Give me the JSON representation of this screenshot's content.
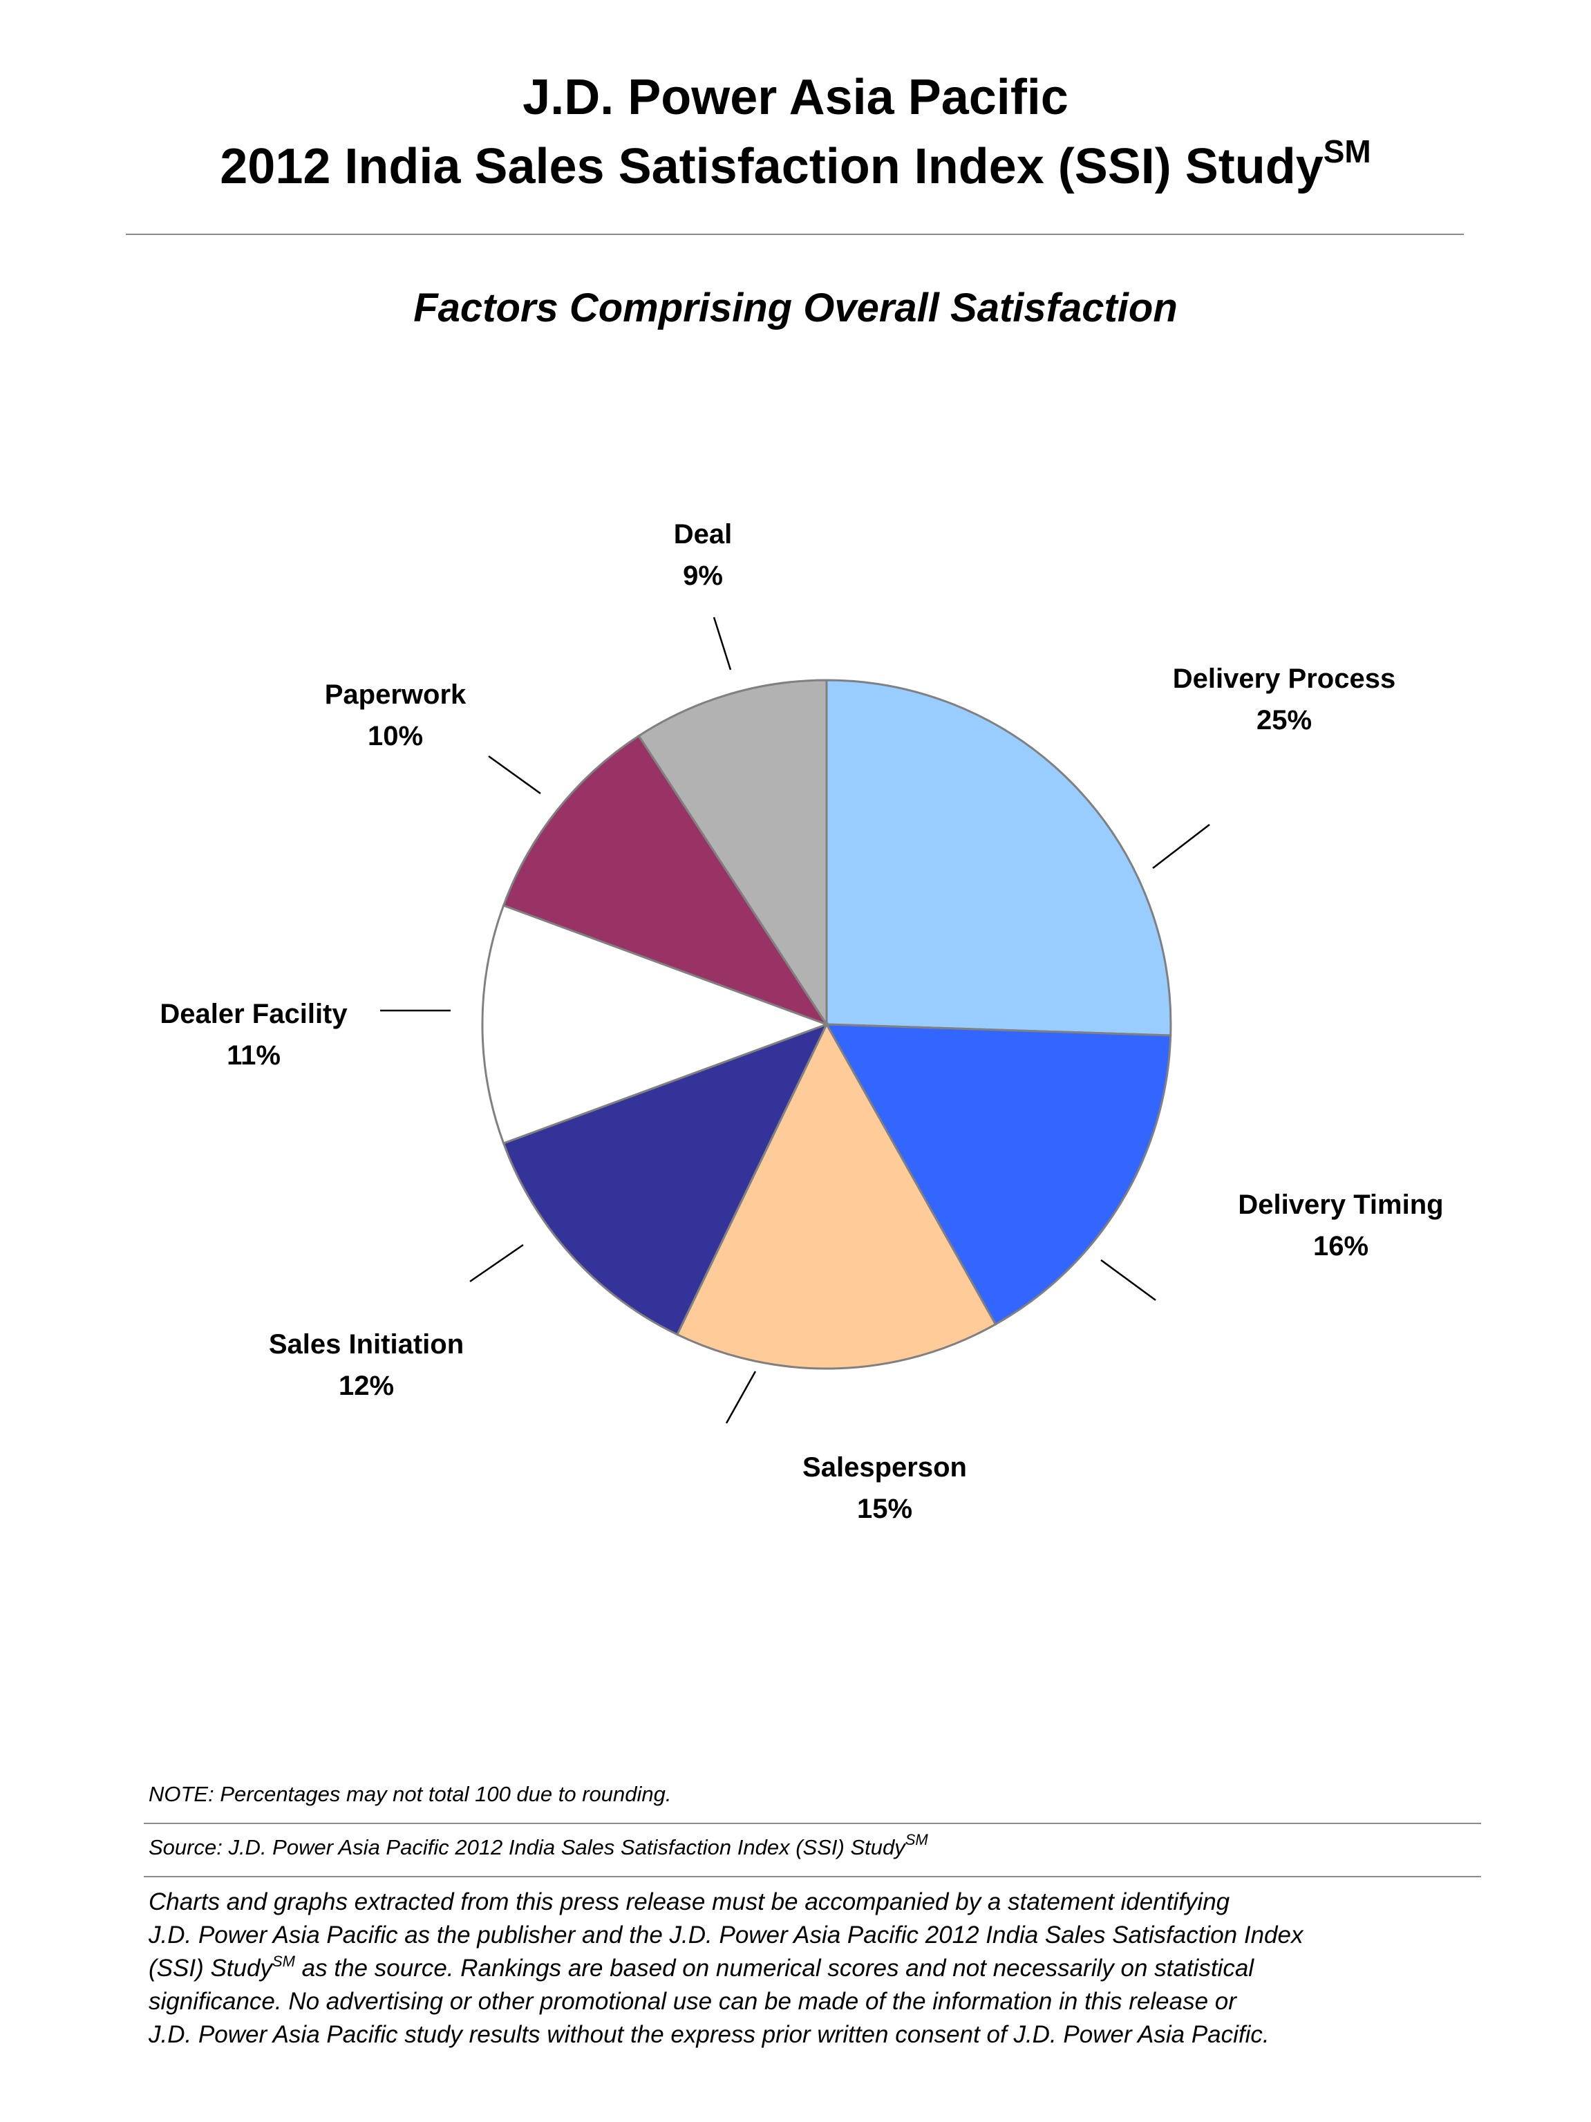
{
  "header": {
    "title_line1": "J.D. Power Asia Pacific",
    "title_line2": "2012 India Sales Satisfaction Index (SSI) Study",
    "title_sup": "SM"
  },
  "chart_data": {
    "type": "pie",
    "title": "Factors Comprising Overall Satisfaction",
    "unit": "%",
    "start_angle_deg": 0,
    "direction": "clockwise",
    "slices": [
      {
        "label": "Delivery Process",
        "value": 25,
        "value_text": "25%",
        "color": "#99ccff"
      },
      {
        "label": "Delivery Timing",
        "value": 16,
        "value_text": "16%",
        "color": "#3366ff"
      },
      {
        "label": "Salesperson",
        "value": 15,
        "value_text": "15%",
        "color": "#ffcc99"
      },
      {
        "label": "Sales Initiation",
        "value": 12,
        "value_text": "12%",
        "color": "#333399"
      },
      {
        "label": "Dealer Facility",
        "value": 11,
        "value_text": "11%",
        "color": "#ffffff"
      },
      {
        "label": "Paperwork",
        "value": 10,
        "value_text": "10%",
        "color": "#993366"
      },
      {
        "label": "Deal",
        "value": 9,
        "value_text": "9%",
        "color": "#b2b2b2"
      }
    ]
  },
  "footer": {
    "note": "NOTE: Percentages may not total 100 due to rounding.",
    "source": "Source: J.D. Power Asia Pacific 2012 India Sales Satisfaction Index (SSI) Study",
    "source_sup": "SM",
    "disclaimer_lines": [
      "Charts and graphs extracted from this press release must be accompanied by a statement identifying",
      "J.D. Power Asia Pacific as the publisher and the J.D. Power Asia Pacific 2012 India Sales Satisfaction Index",
      "(SSI) Study",
      "SM",
      " as the source. Rankings are based on numerical scores and not necessarily on statistical",
      "significance. No advertising or other promotional use can be made of the information in this release or",
      "J.D. Power Asia Pacific study results without the express prior written consent of J.D. Power Asia Pacific."
    ]
  }
}
